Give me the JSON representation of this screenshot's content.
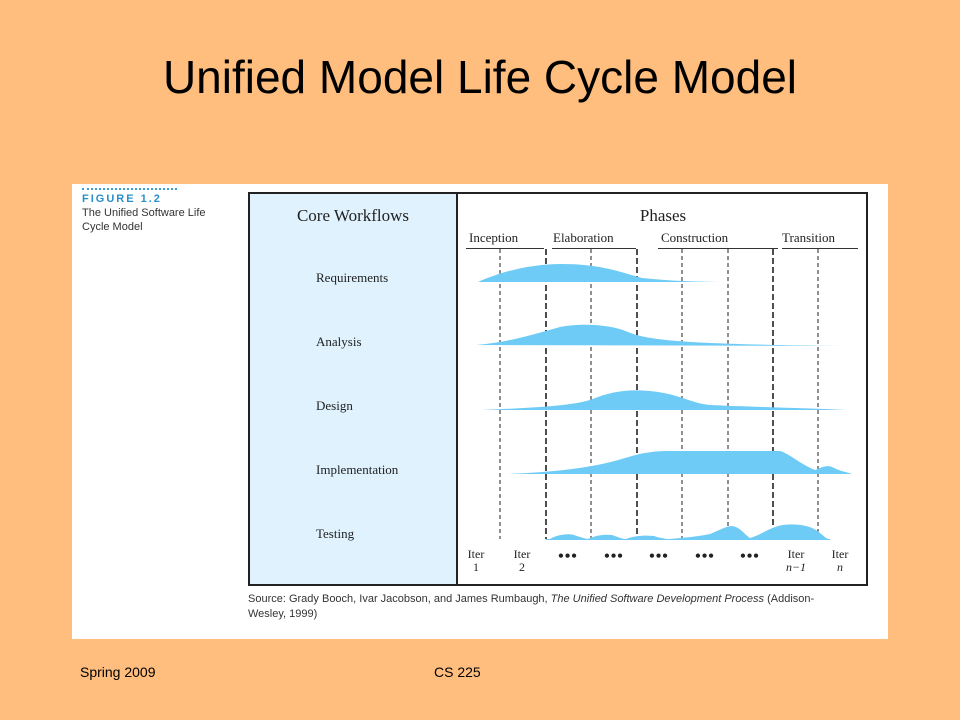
{
  "slide": {
    "title": "Unified Model Life Cycle Model",
    "footer_left": "Spring 2009",
    "footer_center": "CS 225",
    "background_color": "#FFBE7E"
  },
  "figure": {
    "number": "FIGURE 1.2",
    "caption": "The Unified Software Life Cycle Model",
    "core_workflows_header": "Core Workflows",
    "phases_header": "Phases",
    "phases": [
      "Inception",
      "Elaboration",
      "Construction",
      "Transition"
    ],
    "workflows": [
      "Requirements",
      "Analysis",
      "Design",
      "Implementation",
      "Testing"
    ],
    "iterations": [
      {
        "line1": "Iter",
        "line2": "1"
      },
      {
        "line1": "Iter",
        "line2": "2"
      },
      {
        "line1": "•••",
        "line2": ""
      },
      {
        "line1": "•••",
        "line2": ""
      },
      {
        "line1": "•••",
        "line2": ""
      },
      {
        "line1": "•••",
        "line2": ""
      },
      {
        "line1": "•••",
        "line2": ""
      },
      {
        "line1": "Iter",
        "line2": "n−1"
      },
      {
        "line1": "Iter",
        "line2": "n"
      }
    ],
    "source_prefix": "Source: Grady Booch, Ivar Jacobson, and James Rumbaugh, ",
    "source_title": "The Unified Software Development Process",
    "source_suffix": " (Addison-Wesley, 1999)",
    "workflow_fill_color": "#6ECBF5",
    "workflow_panel_color": "#DFF2FD"
  }
}
